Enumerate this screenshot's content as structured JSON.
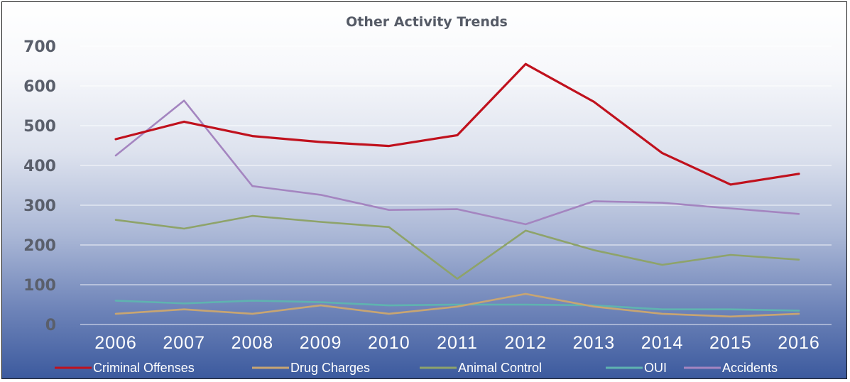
{
  "chart_data": {
    "type": "line",
    "title": "Other Activity Trends",
    "xlabel": "",
    "ylabel": "",
    "categories": [
      "2006",
      "2007",
      "2008",
      "2009",
      "2010",
      "2011",
      "2012",
      "2013",
      "2014",
      "2015",
      "2016"
    ],
    "ylim": [
      0,
      700
    ],
    "yticks": [
      "0",
      "100",
      "200",
      "300",
      "400",
      "500",
      "600",
      "700"
    ],
    "grid": true,
    "legend_position": "bottom",
    "series": [
      {
        "name": "Criminal Offenses",
        "color": "#c0111d",
        "values": [
          466,
          510,
          474,
          459,
          449,
          476,
          655,
          560,
          431,
          352,
          379
        ]
      },
      {
        "name": "Drug Charges",
        "color": "#c8a572",
        "values": [
          27,
          38,
          27,
          48,
          27,
          45,
          77,
          45,
          27,
          20,
          27
        ]
      },
      {
        "name": "Animal Control",
        "color": "#8ea36a",
        "values": [
          263,
          241,
          273,
          258,
          245,
          115,
          236,
          187,
          150,
          175,
          163
        ]
      },
      {
        "name": "OUI",
        "color": "#5fb3b0",
        "values": [
          60,
          53,
          60,
          56,
          48,
          50,
          50,
          48,
          38,
          38,
          35
        ]
      },
      {
        "name": "Accidents",
        "color": "#a485c0",
        "values": [
          425,
          563,
          348,
          326,
          288,
          290,
          252,
          310,
          306,
          292,
          278
        ]
      }
    ]
  }
}
